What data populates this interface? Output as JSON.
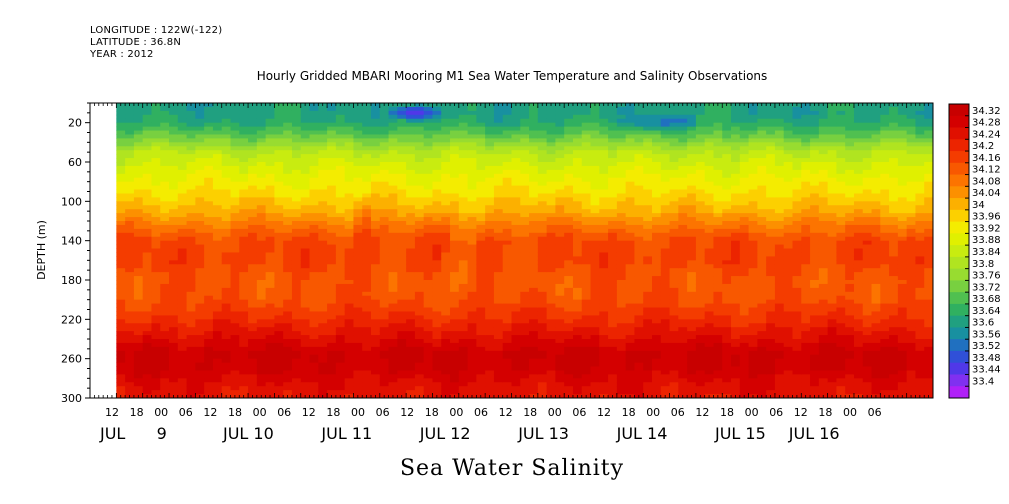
{
  "header": {
    "longitude": "LONGITUDE : 122W(-122)",
    "latitude": "LATITUDE : 36.8N",
    "year": "YEAR : 2012"
  },
  "chart_data": {
    "type": "heatmap",
    "title": "Hourly Gridded MBARI Mooring M1 Sea Water Temperature and Salinity Observations",
    "variable_title": "Sea Water Salinity",
    "ylabel": "DEPTH (m)",
    "ylim": [
      300,
      0
    ],
    "yticks": [
      20,
      60,
      100,
      140,
      180,
      220,
      260,
      300
    ],
    "x_hour_ticks": [
      "12",
      "18",
      "00",
      "06",
      "12",
      "18",
      "00",
      "06",
      "12",
      "18",
      "00",
      "06",
      "12",
      "18",
      "00",
      "06",
      "12",
      "18",
      "00",
      "06",
      "12",
      "18",
      "00",
      "06",
      "12",
      "18",
      "00",
      "06",
      "12",
      "18",
      "00",
      "06"
    ],
    "x_date_labels": [
      {
        "label": "JUL",
        "hour_index": 0
      },
      {
        "label": "9",
        "hour_index": 2.3
      },
      {
        "label": "JUL 10",
        "hour_index": 5
      },
      {
        "label": "JUL 11",
        "hour_index": 9
      },
      {
        "label": "JUL 12",
        "hour_index": 13
      },
      {
        "label": "JUL 13",
        "hour_index": 17
      },
      {
        "label": "JUL 14",
        "hour_index": 21
      },
      {
        "label": "JUL 15",
        "hour_index": 25
      },
      {
        "label": "JUL 16",
        "hour_index": 28
      }
    ],
    "colorbar": {
      "labels": [
        "34.32",
        "34.28",
        "34.24",
        "34.2",
        "34.16",
        "34.12",
        "34.08",
        "34.04",
        "34",
        "33.96",
        "33.92",
        "33.88",
        "33.84",
        "33.8",
        "33.76",
        "33.72",
        "33.68",
        "33.64",
        "33.6",
        "33.56",
        "33.52",
        "33.48",
        "33.44",
        "33.4"
      ],
      "colors": [
        "#c80000",
        "#d40000",
        "#e01000",
        "#ec2400",
        "#f43c00",
        "#f85800",
        "#fc7400",
        "#fc9000",
        "#fcb000",
        "#fcd000",
        "#f4ec00",
        "#e0f000",
        "#c8ec10",
        "#b0e420",
        "#98dc30",
        "#78d040",
        "#50c050",
        "#30b060",
        "#20a080",
        "#1890a0",
        "#2070c0",
        "#3050d8",
        "#5038e8",
        "#8030f0",
        "#b020f8"
      ]
    },
    "depth_profile": [
      {
        "depth": 10,
        "value": 33.64
      },
      {
        "depth": 20,
        "value": 33.66
      },
      {
        "depth": 35,
        "value": 33.74
      },
      {
        "depth": 50,
        "value": 33.84
      },
      {
        "depth": 70,
        "value": 33.9
      },
      {
        "depth": 90,
        "value": 33.95
      },
      {
        "depth": 110,
        "value": 34.01
      },
      {
        "depth": 125,
        "value": 34.08
      },
      {
        "depth": 140,
        "value": 34.14
      },
      {
        "depth": 160,
        "value": 34.15
      },
      {
        "depth": 180,
        "value": 34.12
      },
      {
        "depth": 200,
        "value": 34.13
      },
      {
        "depth": 220,
        "value": 34.18
      },
      {
        "depth": 240,
        "value": 34.24
      },
      {
        "depth": 255,
        "value": 34.29
      },
      {
        "depth": 270,
        "value": 34.28
      },
      {
        "depth": 285,
        "value": 34.24
      },
      {
        "depth": 300,
        "value": 34.22
      }
    ],
    "features": [
      {
        "hour_start": 68,
        "hour_end": 80,
        "depth_start": 0,
        "depth_end": 20,
        "delta": -0.16
      },
      {
        "hour_start": 120,
        "hour_end": 140,
        "depth_start": 10,
        "depth_end": 30,
        "delta": -0.08
      },
      {
        "hour_start": 80,
        "hour_end": 90,
        "depth_start": 120,
        "depth_end": 200,
        "delta": -0.04
      },
      {
        "hour_start": 60,
        "hour_end": 64,
        "depth_start": 90,
        "depth_end": 150,
        "delta": 0.06
      }
    ],
    "data_start_hour": 6,
    "data_end_hour": 192,
    "x_hours_total": 192
  }
}
